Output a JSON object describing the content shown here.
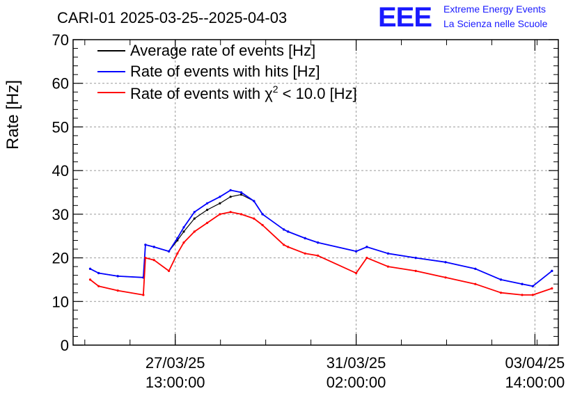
{
  "header": {
    "title": "CARI-01 2025-03-25--2025-04-03",
    "logo_text": "EEE",
    "logo_line1": "Extreme Energy Events",
    "logo_line2": "La Scienza nelle Scuole"
  },
  "colors": {
    "average": "#000000",
    "hits": "#0000ff",
    "chi2": "#ff0000",
    "logo": "#1a1aff"
  },
  "chart_data": {
    "type": "line",
    "ylabel": "Rate [Hz]",
    "ylim": [
      0,
      70
    ],
    "xlim": [
      "2025-03-25T13:00",
      "2025-04-04T01:00"
    ],
    "y_ticks": [
      0,
      10,
      20,
      30,
      40,
      50,
      60,
      70
    ],
    "x_ticks": [
      {
        "t": "2025-03-27T13:00",
        "label1": "27/03/25",
        "label2": "13:00:00"
      },
      {
        "t": "2025-03-31T02:00",
        "label1": "31/03/25",
        "label2": "02:00:00"
      },
      {
        "t": "2025-04-03T14:00",
        "label1": "03/04/25",
        "label2": "14:00:00"
      }
    ],
    "grid": true,
    "legend_position": "top-left",
    "legend": {
      "average": "Average rate of events [Hz]",
      "hits": "Rate of events with hits [Hz]",
      "chi2_prefix": "Rate of events with χ",
      "chi2_sup": "2",
      "chi2_suffix": " < 10.0 [Hz]"
    },
    "series": [
      {
        "name": "Average rate of events [Hz]",
        "key": "average",
        "points": [
          [
            "2025-03-25T21:00",
            17.5
          ],
          [
            "2025-03-26T01:00",
            16.5
          ],
          [
            "2025-03-26T10:00",
            15.8
          ],
          [
            "2025-03-26T22:00",
            15.5
          ],
          [
            "2025-03-26T23:00",
            23.0
          ],
          [
            "2025-03-27T03:00",
            22.5
          ],
          [
            "2025-03-27T10:00",
            21.5
          ],
          [
            "2025-03-27T14:00",
            24.0
          ],
          [
            "2025-03-27T17:00",
            26.0
          ],
          [
            "2025-03-27T22:00",
            29.0
          ],
          [
            "2025-03-28T04:00",
            31.0
          ],
          [
            "2025-03-28T10:00",
            32.5
          ],
          [
            "2025-03-28T15:00",
            34.0
          ],
          [
            "2025-03-28T20:00",
            34.5
          ],
          [
            "2025-03-29T02:00",
            33.0
          ],
          [
            "2025-03-29T06:00",
            30.0
          ],
          [
            "2025-03-29T16:00",
            26.5
          ],
          [
            "2025-03-29T18:00",
            26.0
          ],
          [
            "2025-03-30T02:00",
            24.5
          ],
          [
            "2025-03-30T08:00",
            23.5
          ],
          [
            "2025-03-31T02:00",
            21.5
          ],
          [
            "2025-03-31T07:00",
            22.5
          ],
          [
            "2025-03-31T17:00",
            21.0
          ],
          [
            "2025-04-01T06:00",
            20.0
          ],
          [
            "2025-04-01T20:00",
            19.0
          ],
          [
            "2025-04-02T10:00",
            17.5
          ],
          [
            "2025-04-02T22:00",
            15.0
          ],
          [
            "2025-04-03T08:00",
            14.0
          ],
          [
            "2025-04-03T13:00",
            13.5
          ],
          [
            "2025-04-03T22:00",
            17.0
          ]
        ]
      },
      {
        "name": "Rate of events with hits [Hz]",
        "key": "hits",
        "points": [
          [
            "2025-03-25T21:00",
            17.5
          ],
          [
            "2025-03-26T01:00",
            16.5
          ],
          [
            "2025-03-26T10:00",
            15.8
          ],
          [
            "2025-03-26T22:00",
            15.5
          ],
          [
            "2025-03-26T23:00",
            23.0
          ],
          [
            "2025-03-27T03:00",
            22.5
          ],
          [
            "2025-03-27T10:00",
            21.5
          ],
          [
            "2025-03-27T14:00",
            24.5
          ],
          [
            "2025-03-27T17:00",
            27.0
          ],
          [
            "2025-03-27T22:00",
            30.5
          ],
          [
            "2025-03-28T04:00",
            32.5
          ],
          [
            "2025-03-28T10:00",
            34.0
          ],
          [
            "2025-03-28T15:00",
            35.5
          ],
          [
            "2025-03-28T20:00",
            35.0
          ],
          [
            "2025-03-29T02:00",
            33.0
          ],
          [
            "2025-03-29T06:00",
            30.0
          ],
          [
            "2025-03-29T16:00",
            26.5
          ],
          [
            "2025-03-29T18:00",
            26.0
          ],
          [
            "2025-03-30T02:00",
            24.5
          ],
          [
            "2025-03-30T08:00",
            23.5
          ],
          [
            "2025-03-31T02:00",
            21.5
          ],
          [
            "2025-03-31T07:00",
            22.5
          ],
          [
            "2025-03-31T17:00",
            21.0
          ],
          [
            "2025-04-01T06:00",
            20.0
          ],
          [
            "2025-04-01T20:00",
            19.0
          ],
          [
            "2025-04-02T10:00",
            17.5
          ],
          [
            "2025-04-02T22:00",
            15.0
          ],
          [
            "2025-04-03T08:00",
            14.0
          ],
          [
            "2025-04-03T13:00",
            13.5
          ],
          [
            "2025-04-03T22:00",
            17.0
          ]
        ]
      },
      {
        "name": "Rate of events with χ2 < 10.0 [Hz]",
        "key": "chi2",
        "points": [
          [
            "2025-03-25T21:00",
            15.0
          ],
          [
            "2025-03-26T01:00",
            13.5
          ],
          [
            "2025-03-26T10:00",
            12.5
          ],
          [
            "2025-03-26T22:00",
            11.5
          ],
          [
            "2025-03-26T23:00",
            20.0
          ],
          [
            "2025-03-27T03:00",
            19.5
          ],
          [
            "2025-03-27T10:00",
            17.0
          ],
          [
            "2025-03-27T14:00",
            21.0
          ],
          [
            "2025-03-27T17:00",
            23.5
          ],
          [
            "2025-03-27T22:00",
            26.0
          ],
          [
            "2025-03-28T04:00",
            28.0
          ],
          [
            "2025-03-28T10:00",
            30.0
          ],
          [
            "2025-03-28T15:00",
            30.5
          ],
          [
            "2025-03-28T20:00",
            30.0
          ],
          [
            "2025-03-29T02:00",
            29.0
          ],
          [
            "2025-03-29T06:00",
            27.5
          ],
          [
            "2025-03-29T16:00",
            23.0
          ],
          [
            "2025-03-29T18:00",
            22.5
          ],
          [
            "2025-03-30T02:00",
            21.0
          ],
          [
            "2025-03-30T08:00",
            20.5
          ],
          [
            "2025-03-31T02:00",
            16.5
          ],
          [
            "2025-03-31T07:00",
            20.0
          ],
          [
            "2025-03-31T17:00",
            18.0
          ],
          [
            "2025-04-01T06:00",
            17.0
          ],
          [
            "2025-04-01T20:00",
            15.5
          ],
          [
            "2025-04-02T10:00",
            14.0
          ],
          [
            "2025-04-02T22:00",
            12.0
          ],
          [
            "2025-04-03T08:00",
            11.5
          ],
          [
            "2025-04-03T13:00",
            11.5
          ],
          [
            "2025-04-03T22:00",
            13.0
          ]
        ]
      }
    ]
  }
}
